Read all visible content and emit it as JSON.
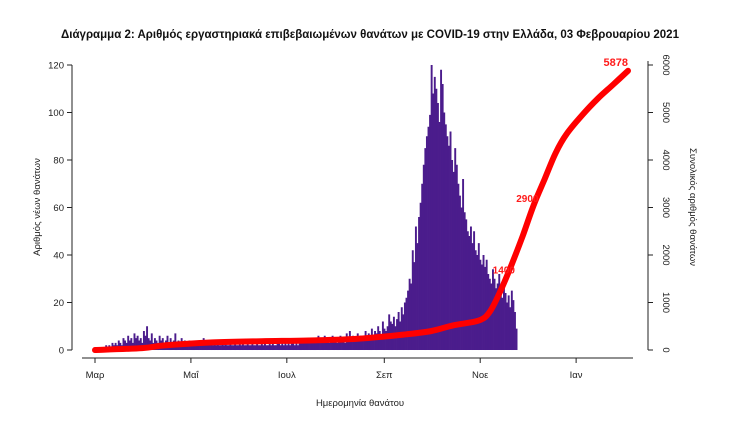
{
  "chart_data": {
    "type": "bar",
    "title": "Διάγραμμα 2: Αριθμός εργαστηριακά επιβεβαιωμένων θανάτων με COVID-19 στην Ελλάδα, 03 Φεβρουαρίου 2021",
    "xlabel": "Ημερομηνία θανάτου",
    "ylabel": "Αριθμός νέων θανάτων",
    "y2label": "Συνολικός αριθμός θανάτων",
    "x_ticks": [
      "Μαρ",
      "Μαΐ",
      "Ιουλ",
      "Σεπ",
      "Νοε",
      "Ιαν"
    ],
    "ylim": [
      0,
      120
    ],
    "y_ticks": [
      "0",
      "20",
      "40",
      "60",
      "80",
      "100",
      "120"
    ],
    "y2lim": [
      0,
      6000
    ],
    "y2_ticks": [
      "0",
      "1000",
      "2000",
      "3000",
      "4000",
      "5000",
      "6000"
    ],
    "grid": false,
    "legend": "none",
    "colors": {
      "bars": "#4b1c8c",
      "cumulative": "#ff0000"
    },
    "series": [
      {
        "type": "bar",
        "axis": "left",
        "x_start": "2020-03-01",
        "values": [
          0,
          1,
          0,
          1,
          1,
          0,
          1,
          2,
          1,
          2,
          1,
          3,
          2,
          3,
          2,
          4,
          3,
          2,
          5,
          4,
          3,
          6,
          4,
          5,
          3,
          7,
          5,
          6,
          4,
          5,
          3,
          8,
          6,
          10,
          5,
          4,
          7,
          3,
          5,
          4,
          3,
          6,
          4,
          5,
          3,
          4,
          6,
          3,
          5,
          2,
          4,
          7,
          3,
          4,
          2,
          5,
          3,
          4,
          2,
          3,
          4,
          2,
          3,
          3,
          2,
          4,
          3,
          2,
          3,
          5,
          2,
          3,
          2,
          4,
          3,
          2,
          3,
          2,
          3,
          2,
          2,
          3,
          2,
          3,
          2,
          2,
          3,
          2,
          2,
          3,
          2,
          2,
          3,
          2,
          3,
          2,
          2,
          3,
          2,
          2,
          3,
          2,
          2,
          3,
          2,
          2,
          3,
          2,
          3,
          2,
          2,
          3,
          2,
          3,
          2,
          2,
          4,
          3,
          2,
          3,
          2,
          3,
          2,
          3,
          2,
          4,
          3,
          2,
          3,
          2,
          3,
          5,
          4,
          3,
          4,
          3,
          4,
          5,
          4,
          3,
          5,
          4,
          6,
          3,
          4,
          5,
          6,
          4,
          5,
          3,
          4,
          6,
          5,
          4,
          3,
          5,
          6,
          4,
          5,
          3,
          7,
          5,
          8,
          4,
          6,
          5,
          4,
          7,
          5,
          6,
          4,
          5,
          8,
          6,
          7,
          5,
          9,
          6,
          8,
          7,
          10,
          8,
          6,
          12,
          9,
          8,
          10,
          15,
          12,
          11,
          14,
          10,
          13,
          16,
          12,
          18,
          15,
          20,
          22,
          25,
          30,
          28,
          42,
          37,
          52,
          45,
          56,
          62,
          70,
          78,
          85,
          90,
          94,
          99,
          120,
          108,
          115,
          110,
          104,
          96,
          118,
          112,
          100,
          95,
          90,
          86,
          92,
          80,
          75,
          85,
          78,
          70,
          65,
          60,
          72,
          58,
          55,
          50,
          48,
          52,
          45,
          50,
          42,
          40,
          45,
          38,
          36,
          40,
          35,
          38,
          32,
          30,
          28,
          34,
          30,
          26,
          28,
          32,
          25,
          22,
          27,
          24,
          20,
          23,
          18,
          25,
          21,
          16,
          9
        ]
      },
      {
        "type": "line",
        "axis": "right",
        "name": "",
        "points": [
          [
            "2020-03-01",
            0
          ],
          [
            "2020-03-31",
            40
          ],
          [
            "2020-04-15",
            100
          ],
          [
            "2020-05-15",
            160
          ],
          [
            "2020-06-15",
            185
          ],
          [
            "2020-07-15",
            200
          ],
          [
            "2020-08-15",
            235
          ],
          [
            "2020-09-15",
            330
          ],
          [
            "2020-10-01",
            400
          ],
          [
            "2020-10-15",
            520
          ],
          [
            "2020-10-31",
            620
          ],
          [
            "2020-11-07",
            800
          ],
          [
            "2020-11-14",
            1250
          ],
          [
            "2020-11-21",
            1800
          ],
          [
            "2020-11-28",
            2400
          ],
          [
            "2020-12-05",
            3050
          ],
          [
            "2020-12-12",
            3600
          ],
          [
            "2020-12-19",
            4150
          ],
          [
            "2020-12-26",
            4550
          ],
          [
            "2021-01-05",
            4950
          ],
          [
            "2021-01-15",
            5300
          ],
          [
            "2021-01-25",
            5600
          ],
          [
            "2021-02-03",
            5878
          ]
        ]
      }
    ],
    "annotations": [
      {
        "text": "5878",
        "x": "2021-02-03",
        "y": 5878,
        "size": "large"
      },
      {
        "text": "2900",
        "x": "2020-12-01",
        "y": 3200,
        "size": "medium"
      },
      {
        "text": "1400",
        "x": "2020-11-16",
        "y": 1700,
        "size": "medium"
      }
    ]
  }
}
